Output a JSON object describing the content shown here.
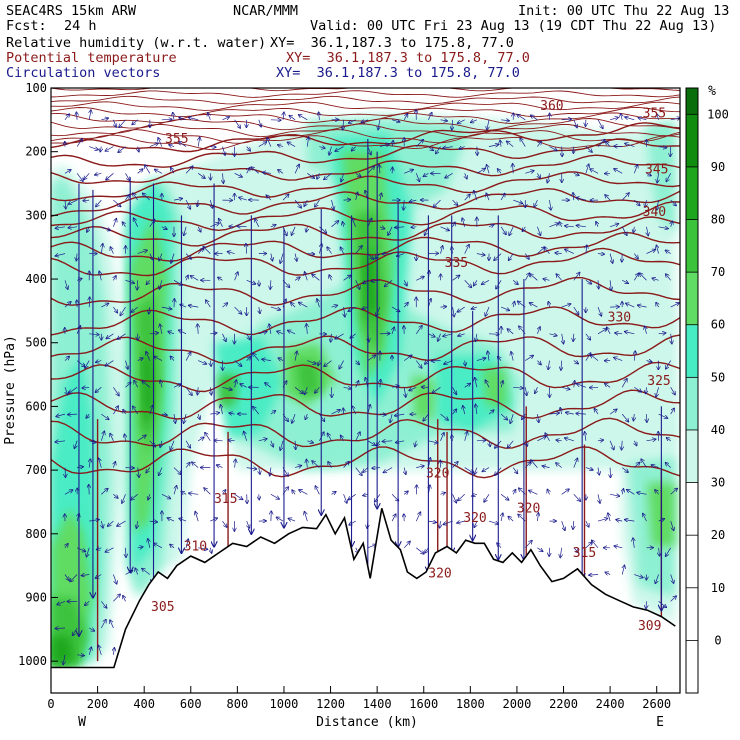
{
  "header": {
    "model": "SEAC4RS 15km ARW",
    "org": "NCAR/MMM",
    "init": "Init: 00 UTC Thu 22 Aug 13",
    "fcst_label": "Fcst:",
    "fcst_value": "24 h",
    "valid": "Valid: 00 UTC Fri 23 Aug 13 (19 CDT Thu 22 Aug 13)",
    "fields": [
      {
        "name": "Relative humidity (w.r.t. water)",
        "xy": "XY=  36.1,187.3 to 175.8, 77.0",
        "color": "#000000"
      },
      {
        "name": "Potential temperature",
        "xy": "XY=  36.1,187.3 to 175.8, 77.0",
        "color": "#8b1a1a"
      },
      {
        "name": "Circulation vectors",
        "xy": "XY=  36.1,187.3 to 175.8, 77.0",
        "color": "#1a1a8c"
      }
    ]
  },
  "chart_data": {
    "type": "heatmap",
    "xlabel": "Distance (km)",
    "ylabel": "Pressure (hPa)",
    "x_ticks": [
      0,
      200,
      400,
      600,
      800,
      1000,
      1200,
      1400,
      1600,
      1800,
      2000,
      2200,
      2400,
      2600
    ],
    "xlim": [
      0,
      2700
    ],
    "y_ticks": [
      100,
      200,
      300,
      400,
      500,
      600,
      700,
      800,
      900,
      1000
    ],
    "ylim": [
      100,
      1050
    ],
    "x_end_labels": {
      "left": "W",
      "right": "E"
    },
    "colorbar": {
      "unit": "%",
      "ticks": [
        0,
        10,
        20,
        30,
        40,
        50,
        60,
        70,
        80,
        90,
        100
      ],
      "bands": [
        {
          "from": 30,
          "to": 40,
          "color": "#ccf7ea"
        },
        {
          "from": 40,
          "to": 50,
          "color": "#8ef0d2"
        },
        {
          "from": 50,
          "to": 60,
          "color": "#48ecc4"
        },
        {
          "from": 60,
          "to": 70,
          "color": "#60dc64"
        },
        {
          "from": 70,
          "to": 80,
          "color": "#3cc33c"
        },
        {
          "from": 80,
          "to": 90,
          "color": "#1ea71e"
        },
        {
          "from": 90,
          "to": 100,
          "color": "#108c10"
        },
        {
          "from": 100,
          "to": 105,
          "color": "#0a6e0a"
        }
      ]
    },
    "theta_labels": [
      {
        "text": "360",
        "x": 2150,
        "p": 128
      },
      {
        "text": "355",
        "x": 2590,
        "p": 140
      },
      {
        "text": "355",
        "x": 540,
        "p": 180
      },
      {
        "text": "345",
        "x": 2600,
        "p": 228
      },
      {
        "text": "340",
        "x": 2590,
        "p": 295
      },
      {
        "text": "335",
        "x": 1740,
        "p": 375
      },
      {
        "text": "330",
        "x": 2440,
        "p": 460
      },
      {
        "text": "325",
        "x": 2610,
        "p": 560
      },
      {
        "text": "320",
        "x": 1660,
        "p": 705
      },
      {
        "text": "320",
        "x": 1820,
        "p": 775
      },
      {
        "text": "320",
        "x": 2050,
        "p": 760
      },
      {
        "text": "320",
        "x": 1670,
        "p": 862
      },
      {
        "text": "315",
        "x": 750,
        "p": 745
      },
      {
        "text": "315",
        "x": 2290,
        "p": 830
      },
      {
        "text": "310",
        "x": 620,
        "p": 820
      },
      {
        "text": "305",
        "x": 480,
        "p": 915
      },
      {
        "text": "309",
        "x": 2570,
        "p": 945
      }
    ]
  }
}
